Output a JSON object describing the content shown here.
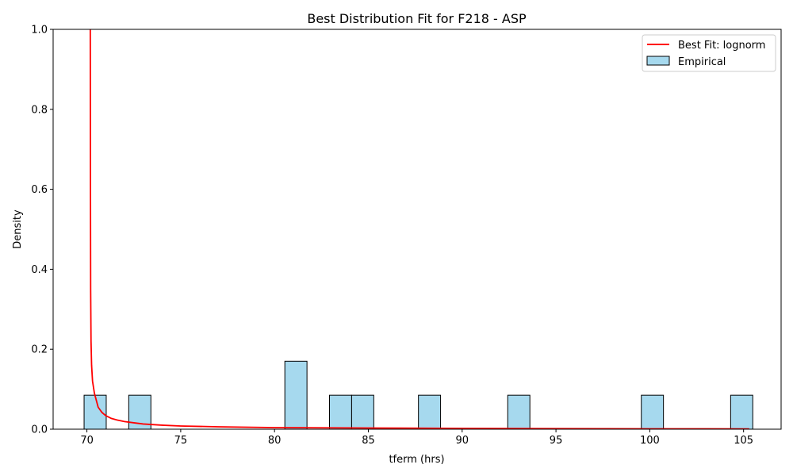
{
  "chart_data": {
    "type": "bar",
    "title": "Best Distribution Fit for F218 - ASP",
    "xlabel": "tferm (hrs)",
    "ylabel": "Density",
    "xlim": [
      68.2,
      107.0
    ],
    "ylim": [
      0,
      1.0
    ],
    "x_ticks": [
      70,
      75,
      80,
      85,
      90,
      95,
      100,
      105
    ],
    "y_ticks": [
      0.0,
      0.2,
      0.4,
      0.6,
      0.8,
      1.0
    ],
    "grid": false,
    "legend_position": "top-right",
    "histogram": {
      "name": "Empirical",
      "color": "#a6d9ee",
      "edge_color": "#000000",
      "bins": [
        {
          "x0": 69.85,
          "x1": 71.03,
          "density": 0.085
        },
        {
          "x0": 72.23,
          "x1": 73.41,
          "density": 0.085
        },
        {
          "x0": 80.55,
          "x1": 81.73,
          "density": 0.17
        },
        {
          "x0": 82.93,
          "x1": 84.11,
          "density": 0.085
        },
        {
          "x0": 84.11,
          "x1": 85.29,
          "density": 0.085
        },
        {
          "x0": 87.67,
          "x1": 88.85,
          "density": 0.085
        },
        {
          "x0": 92.43,
          "x1": 93.61,
          "density": 0.085
        },
        {
          "x0": 99.55,
          "x1": 100.73,
          "density": 0.085
        },
        {
          "x0": 104.31,
          "x1": 105.49,
          "density": 0.085
        }
      ]
    },
    "fit_line": {
      "name": "Best Fit: lognorm",
      "color": "#ff0000",
      "x": [
        70.18,
        70.19,
        70.2,
        70.22,
        70.25,
        70.3,
        70.4,
        70.6,
        70.8,
        71.0,
        71.3,
        71.6,
        72.0,
        72.5,
        73.0,
        74.0,
        75.0,
        77.0,
        80.0,
        85.0,
        90.0,
        95.0,
        100.0,
        105.3
      ],
      "y": [
        1.0,
        0.6,
        0.35,
        0.22,
        0.16,
        0.12,
        0.09,
        0.055,
        0.042,
        0.034,
        0.027,
        0.023,
        0.019,
        0.016,
        0.013,
        0.01,
        0.008,
        0.006,
        0.004,
        0.003,
        0.002,
        0.0015,
        0.001,
        0.0008
      ]
    }
  }
}
